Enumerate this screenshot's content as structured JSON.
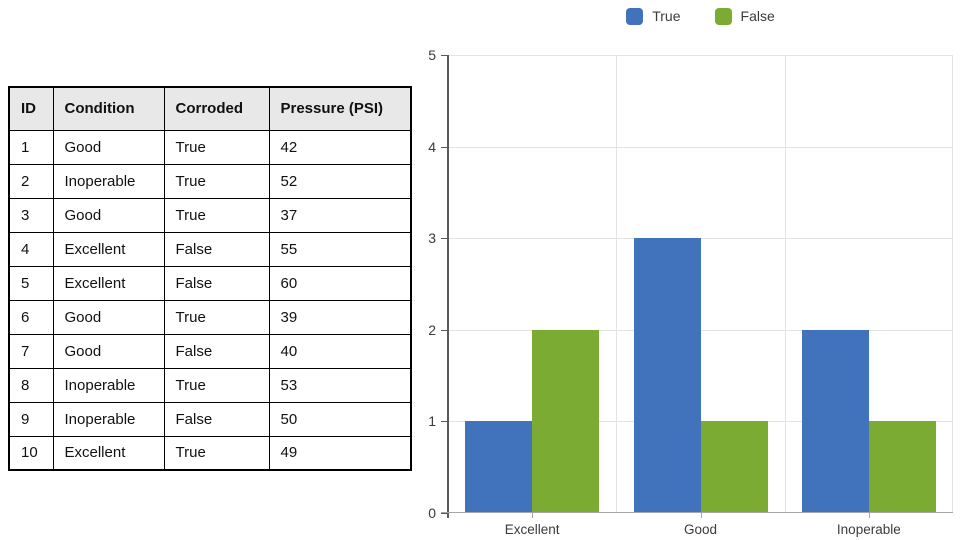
{
  "table": {
    "headers": [
      "ID",
      "Condition",
      "Corroded",
      "Pressure (PSI)"
    ],
    "rows": [
      [
        "1",
        "Good",
        "True",
        "42"
      ],
      [
        "2",
        "Inoperable",
        "True",
        "52"
      ],
      [
        "3",
        "Good",
        "True",
        "37"
      ],
      [
        "4",
        "Excellent",
        "False",
        "55"
      ],
      [
        "5",
        "Excellent",
        "False",
        "60"
      ],
      [
        "6",
        "Good",
        "True",
        "39"
      ],
      [
        "7",
        "Good",
        "False",
        "40"
      ],
      [
        "8",
        "Inoperable",
        "True",
        "53"
      ],
      [
        "9",
        "Inoperable",
        "False",
        "50"
      ],
      [
        "10",
        "Excellent",
        "True",
        "49"
      ]
    ]
  },
  "chart_data": {
    "type": "bar",
    "title": "",
    "categories": [
      "Excellent",
      "Good",
      "Inoperable"
    ],
    "series": [
      {
        "name": "True",
        "color": "#4173BC",
        "values": [
          1,
          3,
          2
        ]
      },
      {
        "name": "False",
        "color": "#7CAB33",
        "values": [
          2,
          1,
          1
        ]
      }
    ],
    "xlabel": "",
    "ylabel": "",
    "ylim": [
      0,
      5
    ],
    "yticks": [
      0,
      1,
      2,
      3,
      4,
      5
    ],
    "grid": true,
    "legend_position": "top",
    "colors": {
      "y_axis": "#595959",
      "x_axis": "#A6A6A6",
      "gridline": "#E3E3E3",
      "label_text": "#3B3B3B"
    }
  }
}
